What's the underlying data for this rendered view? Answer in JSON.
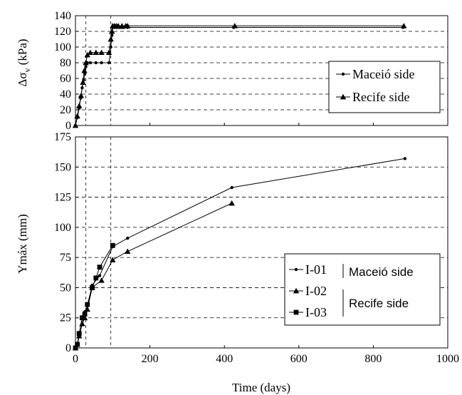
{
  "chart_data": [
    {
      "type": "line",
      "ylabel_base": "Δσ",
      "ylabel_sub": "v",
      "ylabel_unit": "(kPa)",
      "xlim": [
        0,
        1000
      ],
      "ylim": [
        0,
        140
      ],
      "yticks": [
        "0",
        "20",
        "40",
        "60",
        "80",
        "100",
        "120",
        "140"
      ],
      "grid": "horizontal-dashed",
      "reference_lines_x": [
        28,
        95
      ],
      "legend_position": "center-right",
      "series": [
        {
          "name": "Maceió side",
          "marker": "dot",
          "x": [
            0,
            5,
            10,
            14,
            18,
            22,
            25,
            28,
            32,
            40,
            55,
            70,
            90,
            95,
            98,
            100,
            105,
            110,
            115,
            120,
            125,
            130,
            140,
            425,
            880
          ],
          "y": [
            0,
            10,
            22,
            35,
            48,
            58,
            66,
            75,
            80,
            80,
            80,
            80,
            80,
            100,
            115,
            125,
            125,
            125,
            125,
            125,
            125,
            125,
            125,
            125,
            125
          ]
        },
        {
          "name": "Recife side",
          "marker": "triangle",
          "x": [
            0,
            5,
            10,
            15,
            20,
            24,
            28,
            32,
            40,
            55,
            70,
            90,
            95,
            98,
            100,
            105,
            110,
            115,
            125,
            135,
            140,
            428,
            882
          ],
          "y": [
            0,
            12,
            25,
            38,
            55,
            70,
            80,
            90,
            93,
            93,
            93,
            93,
            110,
            120,
            127,
            127,
            127,
            127,
            127,
            127,
            127,
            127,
            127
          ]
        }
      ]
    },
    {
      "type": "line",
      "xlabel": "Time (days)",
      "ylabel": "Ymáx (mm)",
      "xlim": [
        0,
        1000
      ],
      "ylim": [
        0,
        175
      ],
      "xticks": [
        "0",
        "200",
        "400",
        "600",
        "800",
        "1000"
      ],
      "yticks": [
        "0",
        "25",
        "50",
        "75",
        "100",
        "125",
        "150",
        "175"
      ],
      "grid": "horizontal-dashed",
      "reference_lines_x": [
        28,
        95
      ],
      "legend_position": "bottom-right",
      "legend_group_labels": [
        "Maceió side",
        "Recife side"
      ],
      "series": [
        {
          "name": "I-01",
          "marker": "dot",
          "x": [
            0,
            5,
            10,
            18,
            25,
            32,
            45,
            65,
            100,
            140,
            420,
            885
          ],
          "y": [
            0,
            2,
            10,
            20,
            30,
            35,
            52,
            60,
            84,
            91,
            133,
            157
          ]
        },
        {
          "name": "I-02",
          "marker": "triangle",
          "x": [
            0,
            5,
            10,
            18,
            25,
            32,
            45,
            70,
            100,
            140,
            420
          ],
          "y": [
            0,
            3,
            10,
            20,
            25,
            32,
            50,
            56,
            73,
            80,
            120
          ]
        },
        {
          "name": "I-03",
          "marker": "square",
          "x": [
            0,
            5,
            10,
            18,
            25,
            32,
            45,
            55,
            65,
            100
          ],
          "y": [
            0,
            3,
            12,
            25,
            28,
            36,
            50,
            58,
            67,
            85
          ]
        }
      ]
    }
  ]
}
